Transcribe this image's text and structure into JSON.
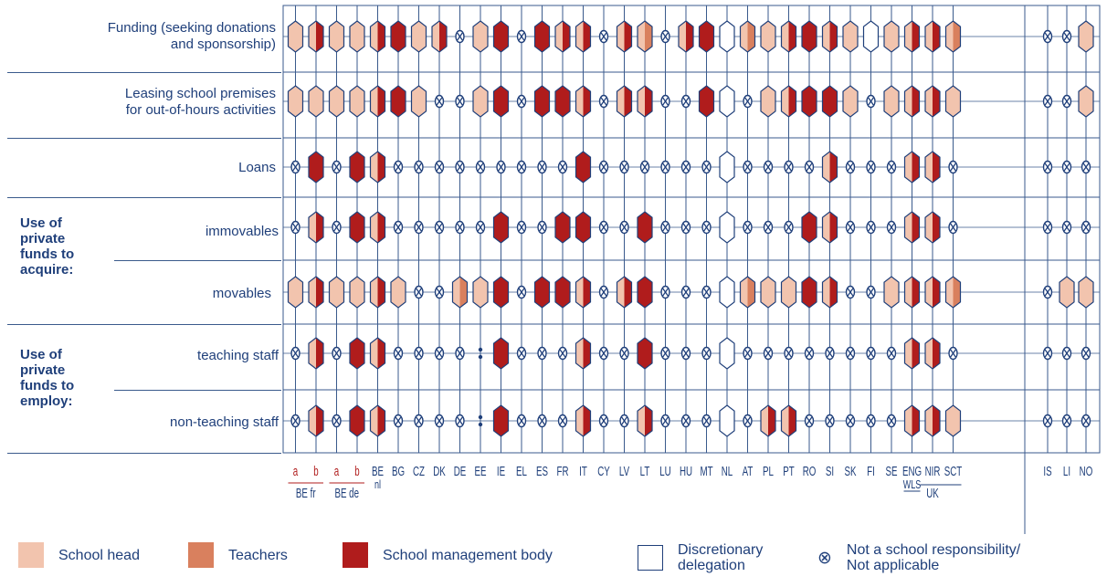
{
  "chart_data": {
    "type": "table",
    "title": "",
    "code_legend": {
      "H": "School head",
      "T": "Teachers",
      "M": "School management body",
      "D": "Discretionary delegation",
      "X": "Not a school responsibility/ Not applicable",
      "HM": "School head + School management body",
      "HT": "School head + Teachers",
      "NA": ":"
    },
    "colors": {
      "H": "#f2c4ae",
      "T": "#d9805e",
      "M": "#b01c1c",
      "D": "#ffffff",
      "outline": "#1f3f7a",
      "grid": "#3a5a8c"
    },
    "columns": [
      "BE fr a",
      "BE fr b",
      "BE de a",
      "BE de b",
      "BE nl",
      "BG",
      "CZ",
      "DK",
      "DE",
      "EE",
      "IE",
      "EL",
      "ES",
      "FR",
      "IT",
      "CY",
      "LV",
      "LT",
      "LU",
      "HU",
      "MT",
      "NL",
      "AT",
      "PL",
      "PT",
      "RO",
      "SI",
      "SK",
      "FI",
      "SE",
      "ENG WLS",
      "NIR",
      "SCT",
      "IS",
      "LI",
      "NO"
    ],
    "rows": [
      {
        "label": "Funding (seeking donations and sponsorship)",
        "values": [
          "H",
          "HM",
          "H",
          "H",
          "HM",
          "M",
          "H",
          "HM",
          "X",
          "H",
          "M",
          "X",
          "M",
          "HM",
          "HM",
          "X",
          "HM",
          "HT",
          "X",
          "HM",
          "M",
          "D",
          "HT",
          "H",
          "HM",
          "M",
          "HM",
          "H",
          "D",
          "H",
          "HM",
          "HM",
          "HT",
          "X",
          "X",
          "H"
        ]
      },
      {
        "label": "Leasing school premises for out-of-hours activities",
        "values": [
          "H",
          "H",
          "H",
          "H",
          "HM",
          "M",
          "H",
          "X",
          "X",
          "H",
          "M",
          "X",
          "M",
          "M",
          "HM",
          "X",
          "HM",
          "HM",
          "X",
          "X",
          "M",
          "D",
          "X",
          "H",
          "HM",
          "M",
          "M",
          "H",
          "X",
          "H",
          "HM",
          "HM",
          "H",
          "X",
          "X",
          "H"
        ]
      },
      {
        "label": "Loans",
        "values": [
          "X",
          "M",
          "X",
          "M",
          "HM",
          "X",
          "X",
          "X",
          "X",
          "X",
          "X",
          "X",
          "X",
          "X",
          "M",
          "X",
          "X",
          "X",
          "X",
          "X",
          "X",
          "D",
          "X",
          "X",
          "X",
          "X",
          "HM",
          "X",
          "X",
          "X",
          "HM",
          "HM",
          "X",
          "X",
          "X",
          "X"
        ]
      },
      {
        "label": "immovables",
        "values": [
          "X",
          "HM",
          "X",
          "M",
          "HM",
          "X",
          "X",
          "X",
          "X",
          "X",
          "M",
          "X",
          "X",
          "M",
          "M",
          "X",
          "X",
          "M",
          "X",
          "X",
          "X",
          "D",
          "X",
          "X",
          "X",
          "M",
          "HM",
          "X",
          "X",
          "X",
          "HM",
          "HM",
          "X",
          "X",
          "X",
          "X"
        ]
      },
      {
        "label": "movables",
        "values": [
          "H",
          "HM",
          "H",
          "H",
          "HM",
          "H",
          "X",
          "X",
          "HT",
          "H",
          "M",
          "X",
          "M",
          "M",
          "HM",
          "X",
          "HM",
          "M",
          "X",
          "X",
          "X",
          "D",
          "HT",
          "H",
          "H",
          "M",
          "HM",
          "X",
          "X",
          "H",
          "HM",
          "HM",
          "HT",
          "X",
          "H",
          "H"
        ]
      },
      {
        "label": "teaching staff",
        "values": [
          "X",
          "HM",
          "X",
          "M",
          "HM",
          "X",
          "X",
          "X",
          "X",
          "NA",
          "M",
          "X",
          "X",
          "X",
          "HM",
          "X",
          "X",
          "M",
          "X",
          "X",
          "X",
          "D",
          "X",
          "X",
          "X",
          "X",
          "X",
          "X",
          "X",
          "X",
          "HM",
          "HM",
          "X",
          "X",
          "X",
          "X"
        ]
      },
      {
        "label": "non-teaching staff",
        "values": [
          "X",
          "HM",
          "X",
          "M",
          "HM",
          "X",
          "X",
          "X",
          "X",
          "NA",
          "M",
          "X",
          "X",
          "X",
          "HM",
          "X",
          "X",
          "HM",
          "X",
          "X",
          "X",
          "D",
          "X",
          "HM",
          "HM",
          "X",
          "X",
          "X",
          "X",
          "X",
          "HM",
          "HM",
          "H",
          "X",
          "X",
          "X"
        ]
      }
    ]
  },
  "row_labels": {
    "funding_line1": "Funding (seeking donations",
    "funding_line2": "and sponsorship)",
    "leasing_line1": "Leasing school premises",
    "leasing_line2": "for out-of-hours activities",
    "loans": "Loans",
    "acquire_group": [
      "Use of",
      "private",
      "funds to",
      "acquire:"
    ],
    "immovables": "immovables",
    "movables": "movables",
    "employ_group": [
      "Use of",
      "private",
      "funds to",
      "employ:"
    ],
    "teaching": "teaching staff",
    "nonteaching": "non-teaching staff"
  },
  "axis_labels": {
    "cols": [
      {
        "text": "a",
        "red": true
      },
      {
        "text": "b",
        "red": true
      },
      {
        "text": "a",
        "red": true
      },
      {
        "text": "b",
        "red": true
      },
      {
        "text": "BE",
        "sub": "nl"
      },
      {
        "text": "BG"
      },
      {
        "text": "CZ"
      },
      {
        "text": "DK"
      },
      {
        "text": "DE"
      },
      {
        "text": "EE"
      },
      {
        "text": "IE"
      },
      {
        "text": "EL"
      },
      {
        "text": "ES"
      },
      {
        "text": "FR"
      },
      {
        "text": "IT"
      },
      {
        "text": "CY"
      },
      {
        "text": "LV"
      },
      {
        "text": "LT"
      },
      {
        "text": "LU"
      },
      {
        "text": "HU"
      },
      {
        "text": "MT"
      },
      {
        "text": "NL"
      },
      {
        "text": "AT"
      },
      {
        "text": "PL"
      },
      {
        "text": "PT"
      },
      {
        "text": "RO"
      },
      {
        "text": "SI"
      },
      {
        "text": "SK"
      },
      {
        "text": "FI"
      },
      {
        "text": "SE"
      },
      {
        "text": "ENG",
        "sub": "WLS"
      },
      {
        "text": "NIR"
      },
      {
        "text": "SCT"
      },
      {
        "text": "IS"
      },
      {
        "text": "LI"
      },
      {
        "text": "NO"
      }
    ],
    "groups": [
      {
        "text": "BE fr"
      },
      {
        "text": "BE de"
      },
      {
        "text": "UK"
      }
    ]
  },
  "legend": {
    "head": "School head",
    "teachers": "Teachers",
    "mgmt": "School management body",
    "disc_line1": "Discretionary",
    "disc_line2": "delegation",
    "na_symbol": "⊗",
    "na_line1": "Not a school responsibility/",
    "na_line2": "Not applicable"
  }
}
